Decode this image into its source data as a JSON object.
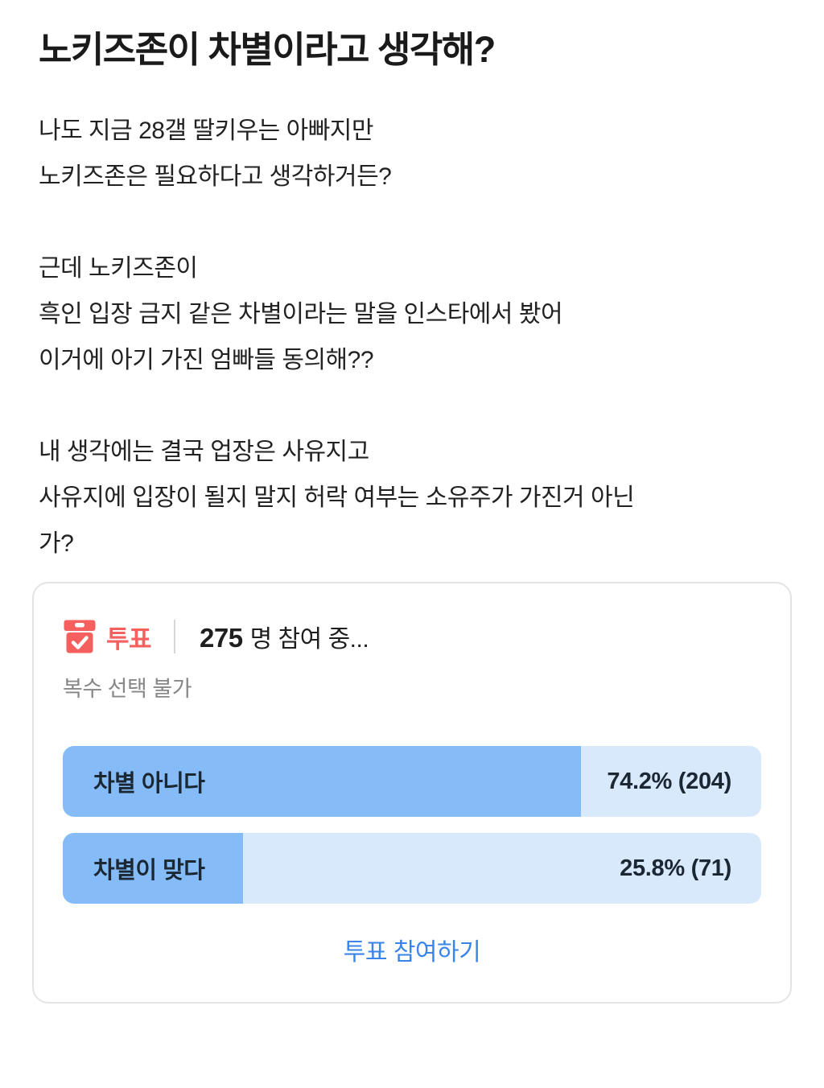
{
  "post": {
    "title": "노키즈존이 차별이라고 생각해?",
    "body_lines": [
      "나도 지금 28갤 딸키우는 아빠지만",
      "노키즈존은 필요하다고 생각하거든?",
      "",
      "근데 노키즈존이",
      "흑인 입장 금지 같은 차별이라는 말을 인스타에서 봤어",
      "이거에 아기 가진 엄빠들 동의해??",
      "",
      "내 생각에는 결국 업장은 사유지고",
      "사유지에 입장이 될지 말지 허락 여부는 소유주가 가진거 아닌",
      "가?"
    ]
  },
  "poll": {
    "label": "투표",
    "participants_count": "275",
    "participants_text": "명 참여 중...",
    "rule": "복수 선택 불가",
    "options": [
      {
        "label": "차별 아니다",
        "value_text": "74.2% (204)",
        "percent": 74.2,
        "count": 204
      },
      {
        "label": "차별이 맞다",
        "value_text": "25.8% (71)",
        "percent": 25.8,
        "count": 71
      }
    ],
    "vote_button_label": "투표 참여하기",
    "icon": "ballot-box-icon"
  },
  "colors": {
    "accent_red": "#f5605f",
    "bar_fill_blue": "#85bcf8",
    "bar_bg_blue": "#d9e9fc",
    "link_blue": "#3a85ea",
    "card_border": "#e3e4e6",
    "muted_text": "#878787",
    "dark_text": "#1b2733"
  }
}
